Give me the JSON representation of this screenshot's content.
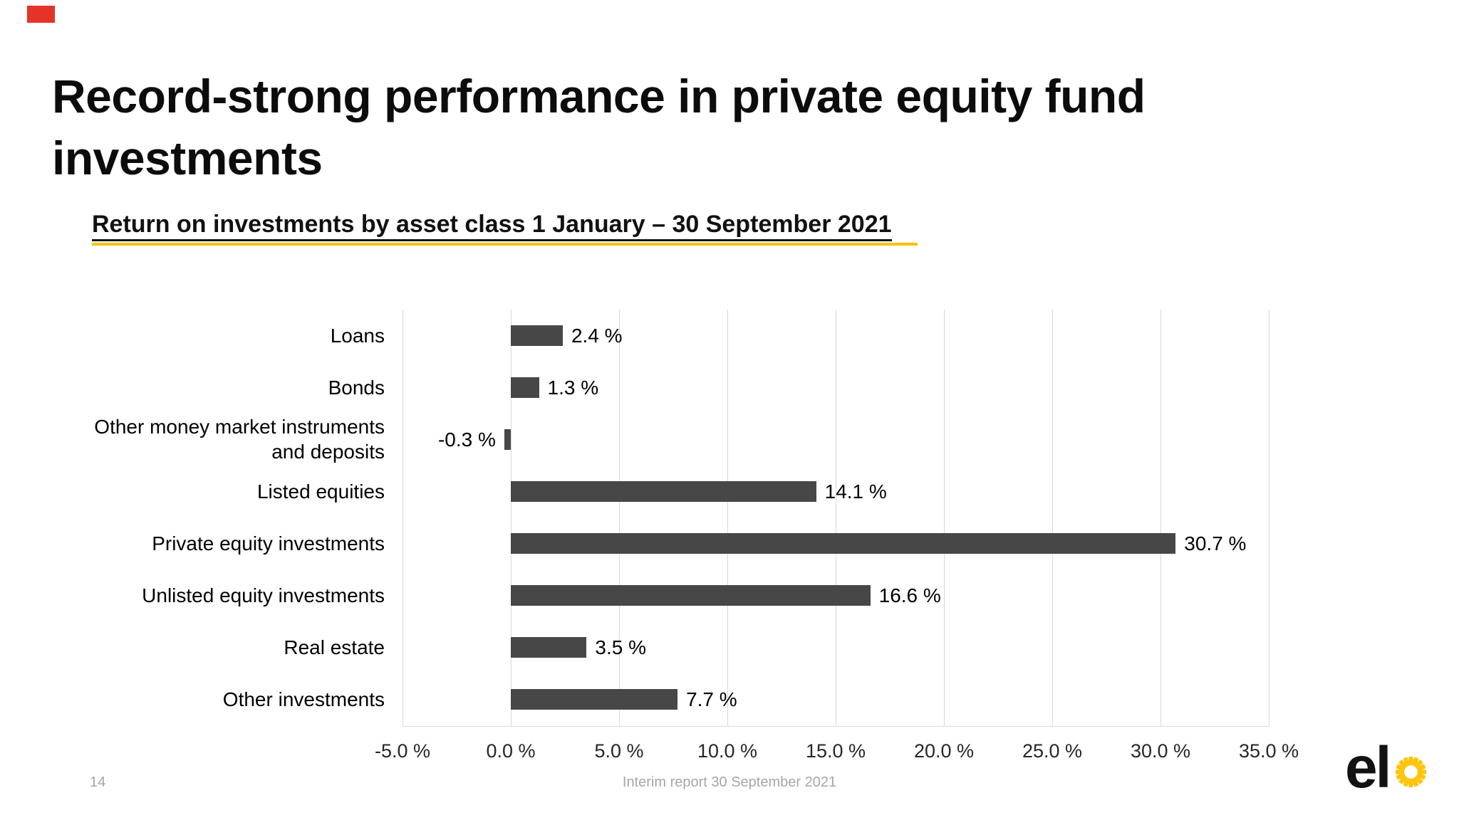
{
  "slide": {
    "top_left_marker_color": "#e63327",
    "title": "Record-strong performance in private equity fund\ninvestments",
    "subtitle": "Return on investments by asset class 1 January – 30 September 2021",
    "footer": {
      "page_number": "14",
      "report_label": "Interim report 30 September 2021"
    },
    "logo": {
      "text": "el",
      "sun_color": "#FFC40C"
    },
    "accent_underline_color": "#FFC000"
  },
  "chart_data": {
    "type": "bar",
    "orientation": "horizontal",
    "title": "Return on investments by asset class 1 January – 30 September 2021",
    "categories": [
      "Loans",
      "Bonds",
      "Other money market instruments\nand deposits",
      "Listed equities",
      "Private equity investments",
      "Unlisted equity investments",
      "Real estate",
      "Other investments"
    ],
    "values": [
      2.4,
      1.3,
      -0.3,
      14.1,
      30.7,
      16.6,
      3.5,
      7.7
    ],
    "value_labels": [
      "2.4 %",
      "1.3 %",
      "-0.3 %",
      "14.1 %",
      "30.7 %",
      "16.6 %",
      "3.5 %",
      "7.7 %"
    ],
    "xlabel": "",
    "ylabel": "",
    "xlim": [
      -5,
      35
    ],
    "x_ticks": [
      -5,
      0,
      5,
      10,
      15,
      20,
      25,
      30,
      35
    ],
    "x_tick_labels": [
      "-5.0 %",
      "0.0 %",
      "5.0 %",
      "10.0 %",
      "15.0 %",
      "20.0 %",
      "25.0 %",
      "30.0 %",
      "35.0 %"
    ],
    "grid": true,
    "legend": false,
    "bar_color": "#474747",
    "gridline_color": "#d9d9d9"
  }
}
